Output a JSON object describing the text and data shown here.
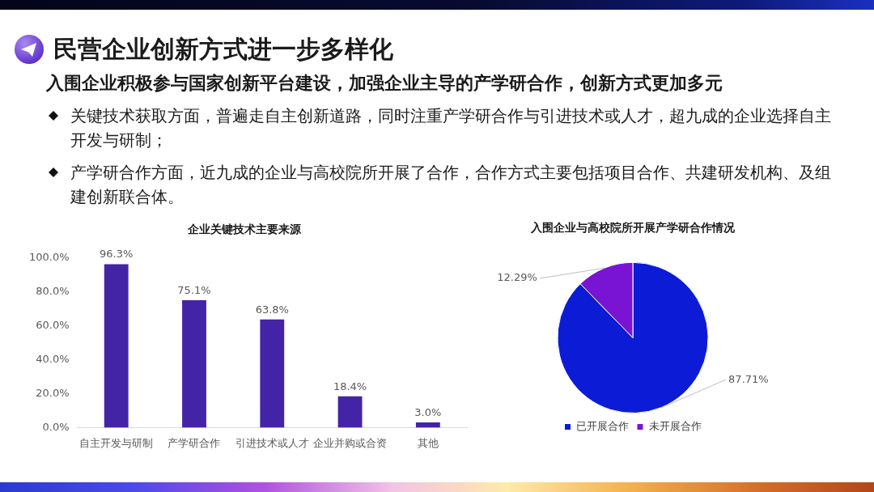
{
  "chart_data": [
    {
      "type": "other",
      "title": "民营企业创新方式进一步多样化",
      "subtitle": "入围企业积极参与国家创新平台建设，加强企业主导的产学研合作，创新方式更加多元",
      "annotations": [
        "关键技术获取方面，普遍走自主创新道路，同时注重产学研合作与引进技术或人才，超九成的企业选择自主开发与研制；",
        "产学研合作方面，近九成的企业与高校院所开展了合作，合作方式主要包括项目合作、共建研发机构、及组建创新联合体。"
      ]
    },
    {
      "type": "bar",
      "title": "企业关键技术主要来源",
      "categories": [
        "自主开发与研制",
        "产学研合作",
        "引进技术或人才",
        "企业并购或合资",
        "其他"
      ],
      "values": [
        96.3,
        75.1,
        63.8,
        18.4,
        3.0
      ],
      "color": "#4424a6",
      "value_labels": [
        "96.3%",
        "75.1%",
        "63.8%",
        "18.4%",
        "3.0%"
      ],
      "ylim": [
        0,
        100
      ],
      "yticks": [
        {
          "value": 0,
          "label": "0.0%"
        },
        {
          "value": 20,
          "label": "20.0%"
        },
        {
          "value": 40,
          "label": "40.0%"
        },
        {
          "value": 60,
          "label": "60.0%"
        },
        {
          "value": 80,
          "label": "80.0%"
        },
        {
          "value": 100,
          "label": "100.0%"
        }
      ]
    },
    {
      "type": "pie",
      "title": "入围企业与高校院所开展产学研合作情况",
      "categories": [
        "已开展合作",
        "未开展合作"
      ],
      "values": [
        87.71,
        12.29
      ],
      "colors": [
        "#0c1cd6",
        "#7a14d4"
      ],
      "value_labels": [
        "87.71%",
        "12.29%"
      ],
      "legend": "bottom"
    }
  ]
}
